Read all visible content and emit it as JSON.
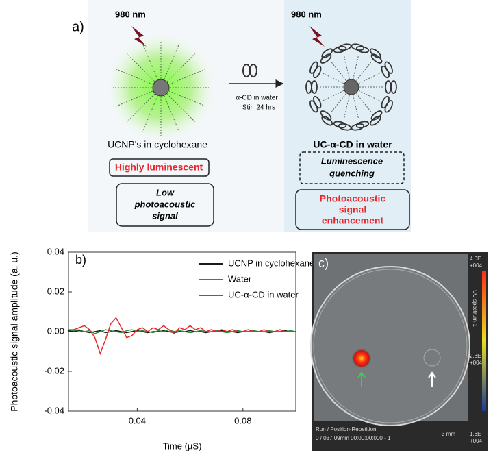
{
  "panel_a": {
    "label": "a)",
    "left": {
      "wavelength": "980 nm",
      "caption": "UCNP's in cyclohexane",
      "box1": "Highly luminescent",
      "box2": [
        "Low",
        "photoacoustic",
        "signal"
      ]
    },
    "arrow": [
      "α-CD in water",
      "Stir  24 hrs"
    ],
    "right": {
      "wavelength": "980 nm",
      "caption": "UC-α-CD in water",
      "box1": [
        "Luminescence",
        "quenching"
      ],
      "box2": [
        "Photoacoustic",
        "signal",
        "enhancement"
      ]
    }
  },
  "chart_data": {
    "type": "line",
    "annotation": "b)",
    "x_label": "Time (µS)",
    "y_label": "Photoacoustic signal amplitude (a. u.)",
    "x": [
      0.014,
      0.016,
      0.018,
      0.02,
      0.022,
      0.024,
      0.026,
      0.028,
      0.03,
      0.032,
      0.034,
      0.036,
      0.038,
      0.04,
      0.042,
      0.044,
      0.046,
      0.048,
      0.05,
      0.052,
      0.054,
      0.056,
      0.058,
      0.06,
      0.062,
      0.064,
      0.066,
      0.068,
      0.07,
      0.072,
      0.074,
      0.076,
      0.078,
      0.08,
      0.082,
      0.084,
      0.086,
      0.088,
      0.09,
      0.092,
      0.094,
      0.096,
      0.098,
      0.1
    ],
    "series": [
      {
        "name": "UCNP in cyclohexane",
        "color": "#1a1a1a",
        "values": [
          0.0005,
          0.0,
          0.0005,
          0.0,
          -0.0005,
          0.0,
          0.0005,
          -0.0005,
          0.0,
          0.0005,
          0.0,
          -0.0005,
          0.0,
          0.0005,
          0.0,
          -0.0005,
          0.0,
          0.0,
          0.0005,
          0.0,
          -0.0005,
          0.0,
          0.0,
          0.0005,
          0.0,
          0.0,
          -0.0005,
          0.0,
          0.0,
          0.0005,
          0.0,
          0.0,
          -0.0005,
          0.0,
          0.0,
          0.0005,
          0.0,
          0.0,
          -0.0005,
          0.0,
          0.0,
          0.0005,
          0.0,
          0.0
        ]
      },
      {
        "name": "Water",
        "color": "#2e8b3a",
        "values": [
          0.001,
          0.0005,
          0.001,
          0.0,
          0.0005,
          -0.001,
          0.0,
          0.001,
          0.0005,
          0.0,
          -0.0005,
          0.0005,
          0.001,
          0.0,
          0.0005,
          0.0,
          -0.0005,
          0.0005,
          0.0,
          0.001,
          0.0,
          0.0005,
          0.0,
          -0.0005,
          0.0,
          0.0005,
          0.0,
          0.0,
          0.0005,
          0.0,
          -0.0005,
          0.0,
          0.0005,
          0.0,
          0.0,
          0.0005,
          0.0,
          0.0,
          0.0005,
          0.0,
          0.0,
          0.0,
          0.0005,
          0.0
        ]
      },
      {
        "name": "UC-α-CD in water",
        "color": "#e8262b",
        "values": [
          0.001,
          0.001,
          0.002,
          0.003,
          0.001,
          -0.003,
          -0.011,
          -0.004,
          0.004,
          0.007,
          0.002,
          -0.003,
          -0.002,
          0.001,
          0.002,
          0.0,
          0.002,
          0.001,
          0.003,
          0.001,
          -0.001,
          0.002,
          0.001,
          0.003,
          0.001,
          0.002,
          0.0,
          0.001,
          0.0,
          0.001,
          0.0,
          0.001,
          0.0,
          0.0,
          0.001,
          0.0,
          0.0,
          0.001,
          0.0,
          0.0,
          0.001,
          0.0,
          0.0,
          0.0
        ]
      }
    ],
    "xlim": [
      0.014,
      0.1
    ],
    "xticks": [
      0.04,
      0.08
    ],
    "ylim": [
      -0.04,
      0.04
    ],
    "yticks": [
      -0.04,
      -0.02,
      {
        "value": 0,
        "label": "0.00"
      },
      0.02,
      0.04
    ],
    "grid": false,
    "legend": "top"
  },
  "panel_c": {
    "label": "c)",
    "scale_top": [
      "4.0E",
      "+004"
    ],
    "scale_mid": [
      "2.8E",
      "+004"
    ],
    "scale_bottom": [
      "1.6E",
      "+004"
    ],
    "scale_title": "UC spectrum-1",
    "footer": [
      "Run / Position-Repetition",
      "0 / 037.09mm 00:00:00:000 - 1"
    ],
    "scale_bar": "3 mm"
  }
}
